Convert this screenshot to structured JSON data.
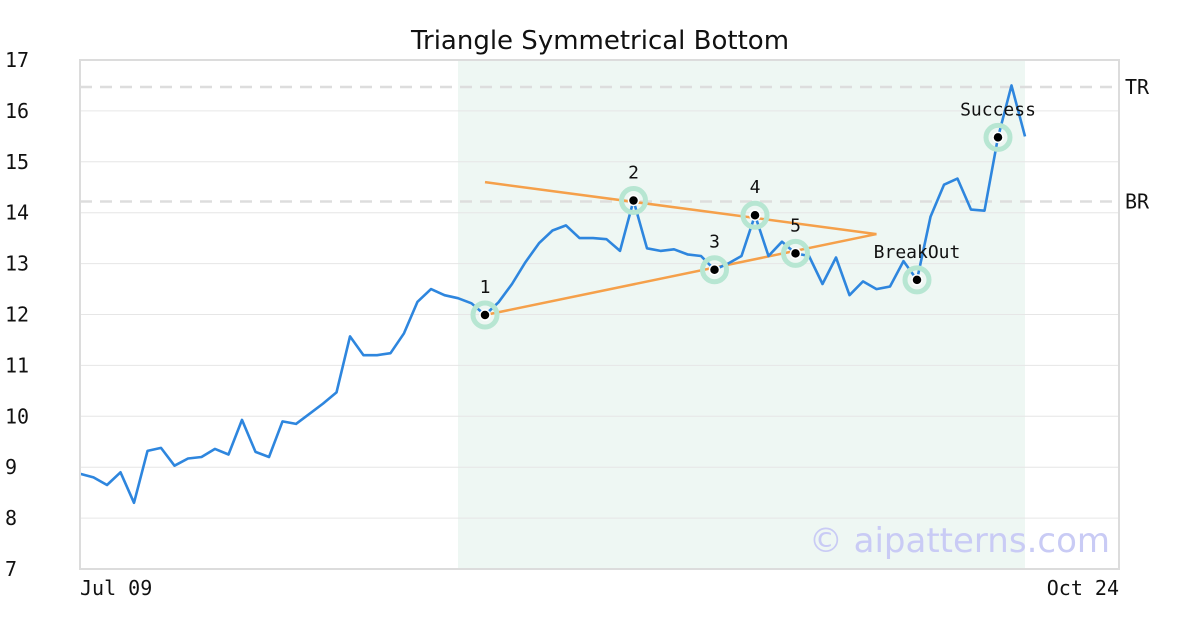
{
  "chart_data": {
    "type": "line",
    "title": "Triangle Symmetrical Bottom",
    "xlabel": "",
    "ylabel": "",
    "ylim": [
      7,
      17
    ],
    "y_ticks": [
      7,
      8,
      9,
      10,
      11,
      12,
      13,
      14,
      15,
      16,
      17
    ],
    "x_tick_labels": [
      "Jul 09",
      "Oct 24"
    ],
    "grid": "horizontal",
    "series": [
      {
        "color": "#2e86de",
        "x": [
          0,
          1,
          2,
          3,
          4,
          5,
          6,
          7,
          8,
          9,
          10,
          11,
          12,
          13,
          14,
          15,
          16,
          17,
          18,
          19,
          20,
          21,
          22,
          23,
          24,
          25,
          26,
          27,
          28,
          29,
          30,
          31,
          32,
          33,
          34,
          35,
          36,
          37,
          38,
          39,
          40,
          41,
          42,
          43,
          44,
          45,
          46,
          47,
          48,
          49,
          50,
          51,
          52,
          53,
          54,
          55,
          56,
          57,
          58,
          59,
          60,
          61,
          62,
          63,
          64,
          65,
          66,
          67,
          68,
          69,
          70
        ],
        "values": [
          8.87,
          8.8,
          8.65,
          8.9,
          8.3,
          9.32,
          9.38,
          9.03,
          9.17,
          9.2,
          9.36,
          9.25,
          9.93,
          9.3,
          9.2,
          9.9,
          9.85,
          10.05,
          10.25,
          10.47,
          11.57,
          11.2,
          11.2,
          11.24,
          11.63,
          12.25,
          12.5,
          12.38,
          12.32,
          12.22,
          11.99,
          12.24,
          12.6,
          13.03,
          13.4,
          13.65,
          13.75,
          13.5,
          13.5,
          13.48,
          13.25,
          14.24,
          13.3,
          13.25,
          13.28,
          13.18,
          13.15,
          12.88,
          13.0,
          13.15,
          13.95,
          13.15,
          13.43,
          13.2,
          13.15,
          12.6,
          13.12,
          12.38,
          12.65,
          12.5,
          12.55,
          13.05,
          12.68,
          13.92,
          14.55,
          14.67,
          14.06,
          14.04,
          15.48,
          16.5,
          15.5
        ]
      }
    ],
    "pattern_region": {
      "x_start": 28,
      "x_end": 70,
      "color": "#eef7f3"
    },
    "trendlines": [
      {
        "name": "upper",
        "color": "#f5a04a",
        "from": {
          "x": 30,
          "y": 14.6
        },
        "to": {
          "x": 59,
          "y": 13.58
        }
      },
      {
        "name": "lower",
        "color": "#f5a04a",
        "from": {
          "x": 30,
          "y": 11.99
        },
        "to": {
          "x": 59,
          "y": 13.58
        }
      }
    ],
    "levels": [
      {
        "label": "TR",
        "y": 16.47
      },
      {
        "label": "BR",
        "y": 14.22
      }
    ],
    "points": [
      {
        "label": "1",
        "x": 30,
        "y": 11.99,
        "label_pos": "above"
      },
      {
        "label": "2",
        "x": 41,
        "y": 14.24,
        "label_pos": "above"
      },
      {
        "label": "3",
        "x": 47,
        "y": 12.88,
        "label_pos": "above"
      },
      {
        "label": "4",
        "x": 50,
        "y": 13.95,
        "label_pos": "above"
      },
      {
        "label": "5",
        "x": 53,
        "y": 13.2,
        "label_pos": "above"
      },
      {
        "label": "BreakOut",
        "x": 62,
        "y": 12.68,
        "label_pos": "above"
      },
      {
        "label": "Success",
        "x": 68,
        "y": 15.48,
        "label_pos": "above"
      }
    ]
  },
  "watermark": "© aipatterns.com"
}
